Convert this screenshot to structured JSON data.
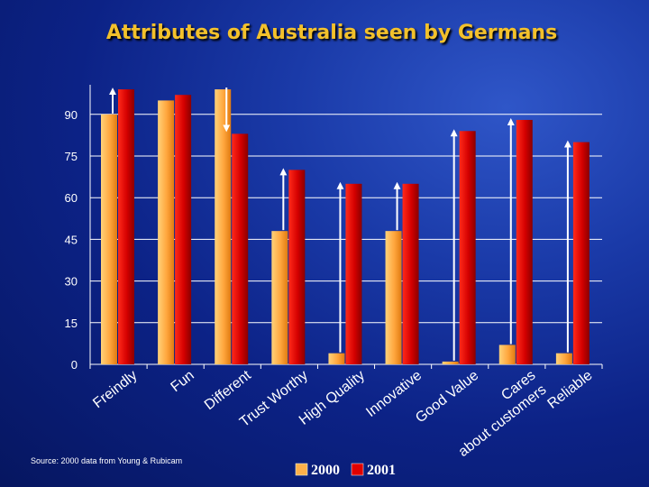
{
  "chart_data": {
    "type": "bar",
    "title": "Attributes of Australia seen by Germans",
    "categories": [
      [
        "Freindly"
      ],
      [
        "Fun"
      ],
      [
        "Different"
      ],
      [
        "Trust Worthy"
      ],
      [
        "High Quality"
      ],
      [
        "Innovative"
      ],
      [
        "Good Value"
      ],
      [
        "Cares about customers",
        "Cares",
        "about customers"
      ],
      [
        "Reliable"
      ]
    ],
    "series": [
      {
        "name": "2000",
        "values": [
          90,
          95,
          99,
          48,
          4,
          48,
          1,
          7,
          4
        ]
      },
      {
        "name": "2001",
        "values": [
          99,
          97,
          83,
          70,
          65,
          65,
          84,
          88,
          80
        ]
      }
    ],
    "y_ticks": [
      "0",
      "15",
      "30",
      "45",
      "60",
      "75",
      "90"
    ],
    "ylim": [
      0,
      105
    ],
    "grid": true,
    "legend_position": "bottom",
    "change_arrows": [
      "up",
      "none",
      "down",
      "up",
      "up",
      "up",
      "up",
      "up",
      "up"
    ],
    "source_note": "Source: 2000 data from Young & Rubicam",
    "colors": {
      "series_2000": "#ffb04a",
      "series_2001": "#e00000",
      "title": "#f3c12b",
      "axis_text": "#ffffff",
      "grid": "#ffffff"
    }
  }
}
